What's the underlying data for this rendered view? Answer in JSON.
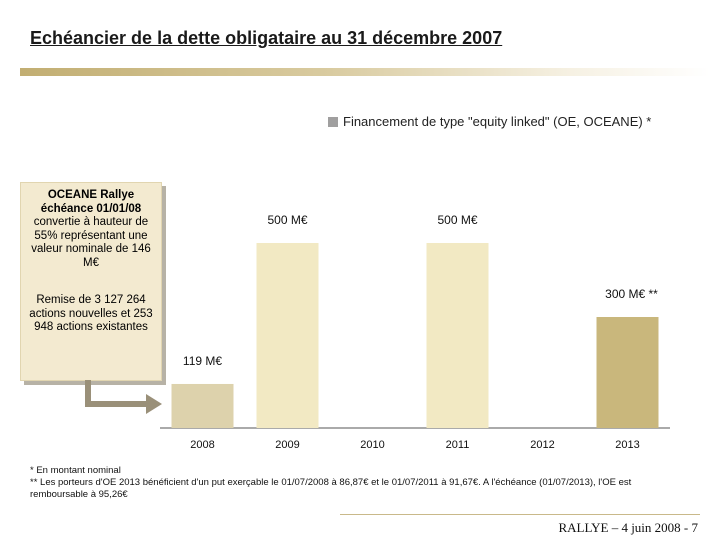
{
  "page": {
    "title": "Echéancier de la dette obligataire au 31 décembre 2007"
  },
  "note_box": {
    "title_line1": "OCEANE Rallye",
    "title_line2": "échéance 01/01/08",
    "body": "convertie à hauteur de 55% représentant une valeur nominale de 146 M€",
    "body2": "Remise de 3 127 264 actions nouvelles et 253 948 actions existantes"
  },
  "footnotes": {
    "line1": "*   En montant nominal",
    "line2": "**  Les porteurs d'OE 2013 bénéficient d'un put exerçable le 01/07/2008 à 86,87€ et le 01/07/2011 à 91,67€. A l'échéance (01/07/2013), l'OE est",
    "line3": "remboursable à 95,26€"
  },
  "footer": {
    "text": "RALLYE – 4 juin 2008  -  7"
  },
  "colors": {
    "bar_light": "#ddd2ac",
    "bar_pale": "#f2e9c3",
    "bar_dark": "#c9b77c",
    "legend_swatch": "#a09f9f",
    "axis": "#555555"
  },
  "chart_data": {
    "type": "bar",
    "title": "",
    "legend": [
      "Financement de type \"equity linked\" (OE, OCEANE) *"
    ],
    "categories": [
      "2008",
      "2009",
      "2010",
      "2011",
      "2012",
      "2013"
    ],
    "values": [
      119,
      500,
      0,
      500,
      0,
      300
    ],
    "data_labels": [
      "119 M€",
      "500 M€",
      "",
      "500 M€",
      "",
      "300 M€ **"
    ],
    "bar_styles": [
      "light",
      "pale",
      "none",
      "pale",
      "none",
      "dark"
    ],
    "unit": "M€",
    "ylim": [
      0,
      500
    ],
    "xlabel": "",
    "ylabel": ""
  }
}
